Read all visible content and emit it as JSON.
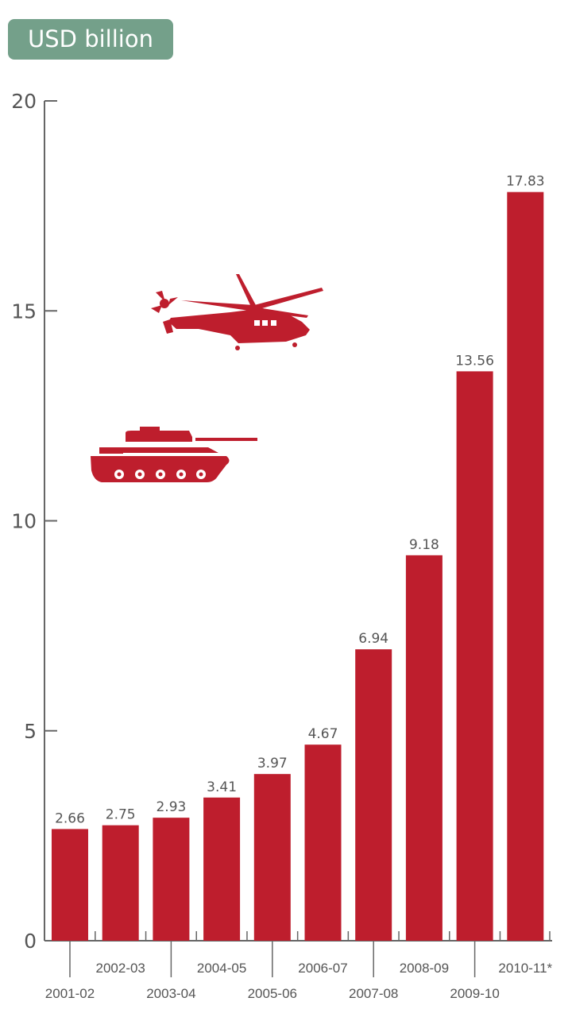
{
  "chart_data": {
    "type": "bar",
    "unit_label": "USD billion",
    "categories": [
      "2001-02",
      "2002-03",
      "2003-04",
      "2004-05",
      "2005-06",
      "2006-07",
      "2007-08",
      "2008-09",
      "2009-10",
      "2010-11*"
    ],
    "values": [
      2.66,
      2.75,
      2.93,
      3.41,
      3.97,
      4.67,
      6.94,
      9.18,
      13.56,
      17.83
    ],
    "value_labels": [
      "2.66",
      "2.75",
      "2.93",
      "3.41",
      "3.97",
      "4.67",
      "6.94",
      "9.18",
      "13.56",
      "17.83"
    ],
    "yticks": [
      0,
      5,
      10,
      15,
      20
    ],
    "ylim": [
      0,
      20
    ],
    "xlabel": "",
    "ylabel": "USD billion",
    "grid": false,
    "colors": {
      "bar": "#be1e2d",
      "badge": "#74a08a",
      "axis": "#666666"
    },
    "icons": [
      "helicopter-icon",
      "tank-icon"
    ]
  }
}
